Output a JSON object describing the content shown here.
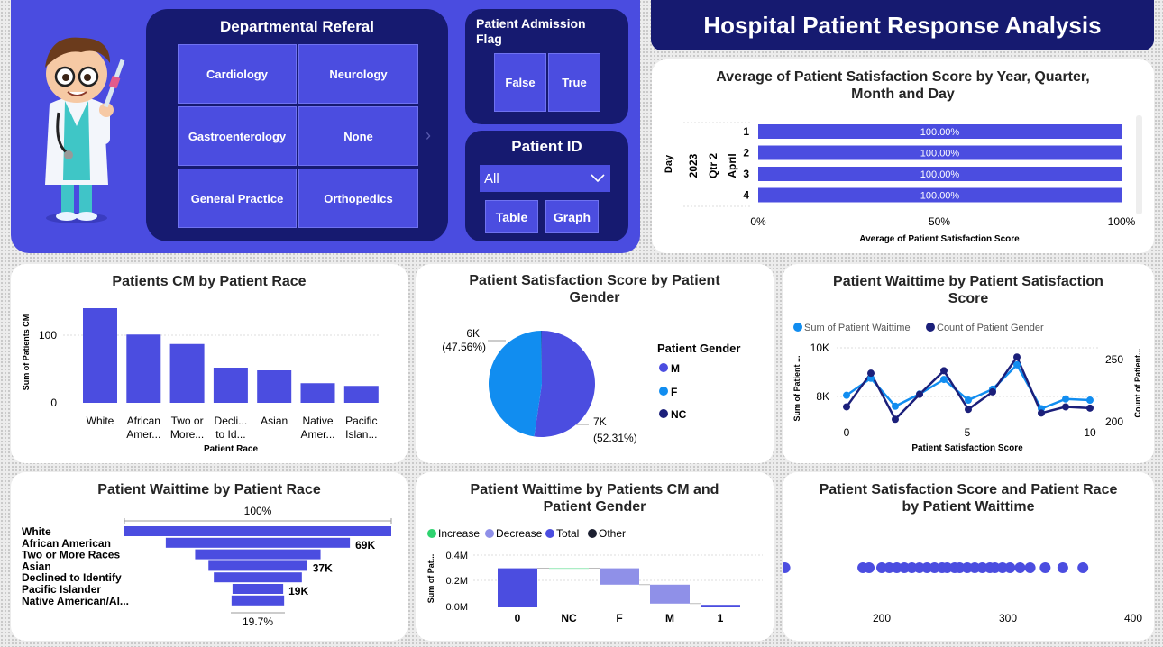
{
  "colors": {
    "primary": "#4b4de0",
    "navy": "#161a70",
    "light_blue": "#118df0",
    "dark_navy": "#1b1f7a",
    "panel": "#4a4ce0"
  },
  "header": {
    "title": "Hospital Patient Response Analysis"
  },
  "filters": {
    "dept_title": "Departmental Referal",
    "depts": [
      "Cardiology",
      "Neurology",
      "Gastroenterology",
      "None",
      "General Practice",
      "Orthopedics"
    ],
    "admission_title": "Patient Admission Flag",
    "admission_options": [
      "False",
      "True"
    ],
    "patient_id_title": "Patient ID",
    "patient_id_value": "All",
    "table_btn": "Table",
    "graph_btn": "Graph"
  },
  "sat_year": {
    "title": "Average of Patient Satisfaction Score by Year, Quarter, Month and Day",
    "hier": [
      "Day",
      "2023",
      "Qtr 2",
      "April"
    ],
    "days": [
      "1",
      "2",
      "3",
      "4"
    ],
    "values": [
      "100.00%",
      "100.00%",
      "100.00%",
      "100.00%"
    ],
    "ticks": [
      "0%",
      "50%",
      "100%"
    ],
    "xlabel": "Average of Patient Satisfaction Score"
  },
  "race_cm": {
    "title": "Patients CM by Patient Race",
    "ylabel": "Sum of Patients CM",
    "xlabel": "Patient Race",
    "yticks": [
      "100",
      "0"
    ],
    "cats": [
      "White",
      "African Amer...",
      "Two or More...",
      "Decli... to Id...",
      "Asian",
      "Native Amer...",
      "Pacific Islan..."
    ]
  },
  "gender_pie": {
    "title": "Patient Satisfaction Score by Patient Gender",
    "legend_title": "Patient Gender",
    "legend": [
      "M",
      "F",
      "NC"
    ],
    "label_f": "6K",
    "label_f_pct": "(47.56%)",
    "label_m": "7K",
    "label_m_pct": "(52.31%)"
  },
  "wait_line": {
    "title": "Patient Waittime by Patient Satisfaction Score",
    "legend": [
      "Sum of Patient Waittime",
      "Count of Patient Gender"
    ],
    "ylabel_left": "Sum of Patient ...",
    "ylabel_right": "Count of Patient...",
    "yticks_left": [
      "10K",
      "8K"
    ],
    "yticks_right": [
      "250",
      "200"
    ],
    "xticks": [
      "0",
      "5",
      "10"
    ],
    "xlabel": "Patient Satisfaction Score"
  },
  "funnel": {
    "title": "Patient Waittime by Patient Race",
    "top_label": "100%",
    "bottom_label": "19.7%",
    "cats": [
      "White",
      "African American",
      "Two or More Races",
      "Asian",
      "Declined to Identify",
      "Pacific Islander",
      "Native American/Al..."
    ],
    "value_labels": [
      "",
      "69K",
      "",
      "37K",
      "",
      "19K",
      ""
    ]
  },
  "waterfall": {
    "title": "Patient Waittime by Patients CM and Patient Gender",
    "legend": [
      "Increase",
      "Decrease",
      "Total",
      "Other"
    ],
    "ylabel": "Sum of Pat...",
    "yticks": [
      "0.4M",
      "0.2M",
      "0.0M"
    ],
    "cats": [
      "0",
      "NC",
      "F",
      "M",
      "1"
    ]
  },
  "scatter": {
    "title": "Patient Satisfaction Score and Patient Race by Patient Waittime",
    "xticks": [
      "200",
      "300",
      "400"
    ]
  },
  "chart_data": [
    {
      "type": "bar",
      "title": "Average of Patient Satisfaction Score by Year, Quarter, Month and Day",
      "categories": [
        "1",
        "2",
        "3",
        "4"
      ],
      "values": [
        1.0,
        1.0,
        1.0,
        1.0
      ],
      "xlabel": "Average of Patient Satisfaction Score",
      "xlim": [
        0,
        1
      ]
    },
    {
      "type": "bar",
      "title": "Patients CM by Patient Race",
      "categories": [
        "White",
        "African American",
        "Two or More Races",
        "Declined to Identify",
        "Asian",
        "Native American",
        "Pacific Islander"
      ],
      "values": [
        140,
        101,
        87,
        52,
        48,
        29,
        25
      ],
      "ylabel": "Sum of Patients CM",
      "xlabel": "Patient Race",
      "ylim": [
        0,
        150
      ]
    },
    {
      "type": "pie",
      "title": "Patient Satisfaction Score by Patient Gender",
      "categories": [
        "M",
        "F",
        "NC"
      ],
      "values": [
        52.31,
        47.56,
        0.13
      ]
    },
    {
      "type": "line",
      "title": "Patient Waittime by Patient Satisfaction Score",
      "x": [
        0,
        1,
        2,
        3,
        4,
        5,
        6,
        7,
        8,
        9,
        10
      ],
      "series": [
        {
          "name": "Sum of Patient Waittime",
          "values": [
            8050,
            8750,
            7600,
            8100,
            8700,
            7850,
            8300,
            9300,
            7500,
            7900,
            7850
          ]
        },
        {
          "name": "Count of Patient Gender",
          "values": [
            212,
            239,
            202,
            222,
            241,
            210,
            224,
            252,
            207,
            212,
            211
          ]
        }
      ]
    },
    {
      "type": "bar",
      "title": "Patient Waittime by Patient Race",
      "categories": [
        "White",
        "African American",
        "Two or More Races",
        "Asian",
        "Declined to Identify",
        "Pacific Islander",
        "Native American/Al..."
      ],
      "values": [
        100,
        69,
        47,
        37,
        33,
        19,
        19.7
      ]
    },
    {
      "type": "bar",
      "title": "Patient Waittime by Patients CM and Patient Gender",
      "categories": [
        "0",
        "NC",
        "F",
        "M",
        "1"
      ],
      "values": [
        0.31,
        0.0,
        -0.13,
        -0.15,
        0.02
      ]
    },
    {
      "type": "scatter",
      "title": "Patient Satisfaction Score and Patient Race by Patient Waittime",
      "x": [
        123,
        185,
        190,
        200,
        206,
        212,
        218,
        224,
        230,
        236,
        242,
        248,
        252,
        258,
        262,
        268,
        274,
        280,
        286,
        290,
        296,
        302,
        310,
        318,
        330,
        344,
        360
      ],
      "y": [
        0,
        0,
        0,
        0,
        0,
        0,
        0,
        0,
        0,
        0,
        0,
        0,
        0,
        0,
        0,
        0,
        0,
        0,
        0,
        0,
        0,
        0,
        0,
        0,
        0,
        0,
        0
      ]
    }
  ]
}
